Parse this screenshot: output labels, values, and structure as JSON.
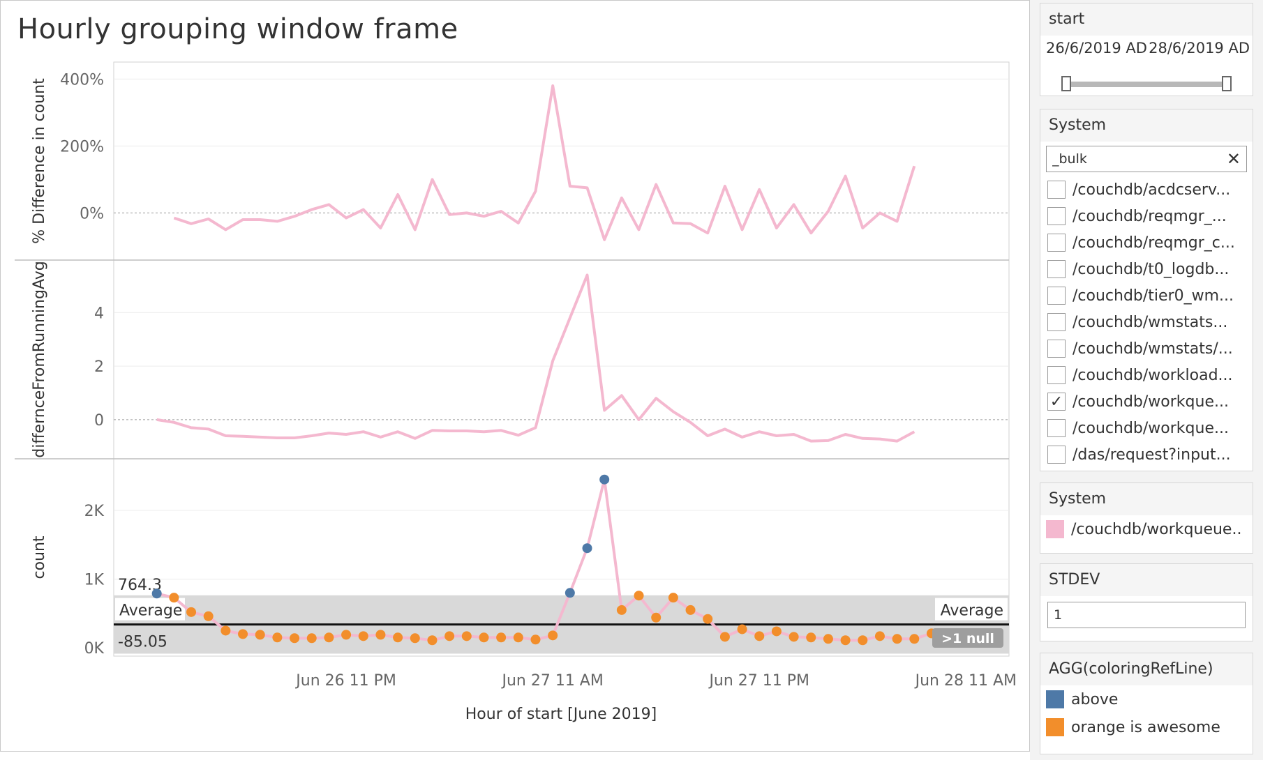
{
  "title": "Hourly grouping window frame",
  "sidebar": {
    "start_filter": {
      "title": "start",
      "from": "26/6/2019 AD",
      "to": "28/6/2019 AD"
    },
    "system_filter": {
      "title": "System",
      "search_value": "_bulk",
      "clear_icon": "close-icon",
      "items": [
        {
          "label": "/couchdb/acdcserv...",
          "checked": false
        },
        {
          "label": "/couchdb/reqmgr_...",
          "checked": false
        },
        {
          "label": "/couchdb/reqmgr_c...",
          "checked": false
        },
        {
          "label": "/couchdb/t0_logdb...",
          "checked": false
        },
        {
          "label": "/couchdb/tier0_wm...",
          "checked": false
        },
        {
          "label": "/couchdb/wmstats...",
          "checked": false
        },
        {
          "label": "/couchdb/wmstats/...",
          "checked": false
        },
        {
          "label": "/couchdb/workload...",
          "checked": false
        },
        {
          "label": "/couchdb/workque...",
          "checked": true
        },
        {
          "label": "/couchdb/workque...",
          "checked": false
        },
        {
          "label": "/das/request?input...",
          "checked": false
        }
      ]
    },
    "system_legend": {
      "title": "System",
      "items": [
        {
          "label": "/couchdb/workqueue..",
          "color": "#f4b8cf"
        }
      ]
    },
    "stdev_param": {
      "title": "STDEV",
      "value": "1"
    },
    "coloring_legend": {
      "title": "AGG(coloringRefLine)",
      "items": [
        {
          "label": "above",
          "color": "#4e79a7"
        },
        {
          "label": "orange is awesome",
          "color": "#f28e2b"
        }
      ]
    }
  },
  "chart_data": {
    "type": "line",
    "x_title": "Hour of start [June 2019]",
    "x_tick_labels": [
      "Jun 26 11 PM",
      "Jun 27 11 AM",
      "Jun 27 11 PM",
      "Jun 28 11 AM"
    ],
    "x_tick_hours": [
      23,
      35,
      47,
      59
    ],
    "x_hours": [
      12,
      13,
      14,
      15,
      16,
      17,
      18,
      19,
      20,
      21,
      22,
      23,
      24,
      25,
      26,
      27,
      28,
      29,
      30,
      31,
      32,
      33,
      34,
      35,
      36,
      37,
      38,
      39,
      40,
      41,
      42,
      43,
      44,
      45,
      46,
      47,
      48,
      49,
      50,
      51,
      52,
      53,
      54,
      55,
      56,
      57,
      58,
      59,
      60
    ],
    "x_domain": [
      9.5,
      61.5
    ],
    "line_color": "#f4b8cf",
    "panels": [
      {
        "y_title": "% Difference in count",
        "y_ticks": [
          0,
          200,
          400
        ],
        "y_tick_labels": [
          "0%",
          "200%",
          "400%"
        ],
        "y_domain": [
          -120,
          430
        ],
        "zero_line": true,
        "values": [
          null,
          -15,
          -32,
          -18,
          -50,
          -20,
          -20,
          -25,
          -10,
          10,
          25,
          -15,
          10,
          -45,
          55,
          -50,
          100,
          -5,
          0,
          -10,
          5,
          -30,
          65,
          380,
          80,
          75,
          -80,
          45,
          -50,
          85,
          -30,
          -32,
          -60,
          80,
          -50,
          70,
          -45,
          25,
          -60,
          5,
          110,
          -45,
          0,
          -25,
          140,
          null,
          null,
          null,
          null
        ]
      },
      {
        "y_title": "differnceFromRunningAvg",
        "y_ticks": [
          0,
          2,
          4
        ],
        "y_tick_labels": [
          "0",
          "2",
          "4"
        ],
        "y_domain": [
          -1.2,
          5.7
        ],
        "zero_line": true,
        "values": [
          0.0,
          -0.1,
          -0.3,
          -0.35,
          -0.6,
          -0.62,
          -0.65,
          -0.68,
          -0.68,
          -0.6,
          -0.5,
          -0.55,
          -0.45,
          -0.65,
          -0.45,
          -0.7,
          -0.4,
          -0.42,
          -0.42,
          -0.45,
          -0.4,
          -0.58,
          -0.3,
          2.2,
          3.8,
          5.4,
          0.35,
          0.9,
          0.0,
          0.8,
          0.3,
          -0.1,
          -0.6,
          -0.35,
          -0.65,
          -0.45,
          -0.6,
          -0.55,
          -0.8,
          -0.78,
          -0.55,
          -0.7,
          -0.72,
          -0.8,
          -0.45,
          null,
          null,
          null,
          null
        ]
      },
      {
        "y_title": "count",
        "y_ticks": [
          0,
          1000,
          2000
        ],
        "y_tick_labels": [
          "0K",
          "1K",
          "2K"
        ],
        "y_domain": [
          -60,
          2650
        ],
        "values": [
          790,
          730,
          520,
          460,
          250,
          200,
          190,
          150,
          140,
          140,
          150,
          190,
          170,
          190,
          150,
          140,
          110,
          170,
          170,
          150,
          150,
          150,
          120,
          180,
          800,
          1450,
          2450,
          550,
          760,
          440,
          730,
          550,
          420,
          160,
          270,
          170,
          240,
          160,
          150,
          130,
          110,
          110,
          170,
          130,
          130,
          210,
          null,
          null,
          null
        ],
        "colors": [
          "above",
          "orange",
          "orange",
          "orange",
          "orange",
          "orange",
          "orange",
          "orange",
          "orange",
          "orange",
          "orange",
          "orange",
          "orange",
          "orange",
          "orange",
          "orange",
          "orange",
          "orange",
          "orange",
          "orange",
          "orange",
          "orange",
          "orange",
          "orange",
          "above",
          "above",
          "above",
          "orange",
          "orange",
          "orange",
          "orange",
          "orange",
          "orange",
          "orange",
          "orange",
          "orange",
          "orange",
          "orange",
          "orange",
          "orange",
          "orange",
          "orange",
          "orange",
          "orange",
          "orange",
          "orange",
          null,
          null,
          null
        ],
        "band_top": 764.3,
        "band_bottom": -85.05,
        "band_top_label": "764.3",
        "band_bottom_label": "-85.05",
        "average_value": 339.6,
        "average_label": "Average",
        "null_indicator": ">1 null"
      }
    ]
  }
}
